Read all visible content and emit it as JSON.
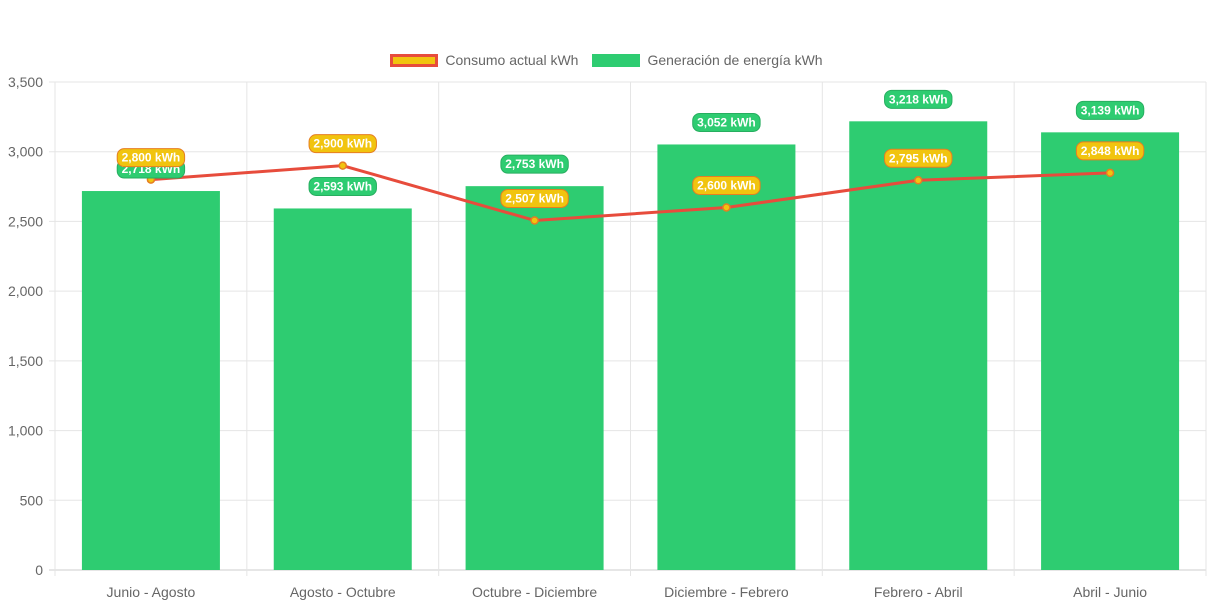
{
  "colors": {
    "bar": "#2ecc71",
    "line": "#e74c3c",
    "point": "#f1c40f",
    "point_border": "#e67e22",
    "label_bar_border": "#27ae60",
    "label_line_bg": "#f1c40f",
    "label_line_border": "#e67e22",
    "grid": "#e5e5e5",
    "tick_text": "#666666"
  },
  "chart_data": {
    "type": "bar",
    "title": "",
    "xlabel": "",
    "ylabel": "",
    "categories": [
      "Junio - Agosto",
      "Agosto - Octubre",
      "Octubre - Diciembre",
      "Diciembre - Febrero",
      "Febrero - Abril",
      "Abril - Junio"
    ],
    "ylim": [
      0,
      3500
    ],
    "yticks": [
      0,
      500,
      1000,
      1500,
      2000,
      2500,
      3000,
      3500
    ],
    "ytick_labels": [
      "0",
      "500",
      "1,000",
      "1,500",
      "2,000",
      "2,500",
      "3,000",
      "3,500"
    ],
    "grid": true,
    "legend_position": "top-center",
    "series": [
      {
        "name": "Consumo actual kWh",
        "type": "line",
        "values": [
          2800,
          2900,
          2507,
          2600,
          2795,
          2848
        ],
        "labels": [
          "2,800 kWh",
          "2,900 kWh",
          "2,507 kWh",
          "2,600 kWh",
          "2,795 kWh",
          "2,848 kWh"
        ]
      },
      {
        "name": "Generación de energía kWh",
        "type": "bar",
        "values": [
          2718,
          2593,
          2753,
          3052,
          3218,
          3139
        ],
        "labels": [
          "2,718 kWh",
          "2,593 kWh",
          "2,753 kWh",
          "3,052 kWh",
          "3,218 kWh",
          "3,139 kWh"
        ]
      }
    ]
  }
}
